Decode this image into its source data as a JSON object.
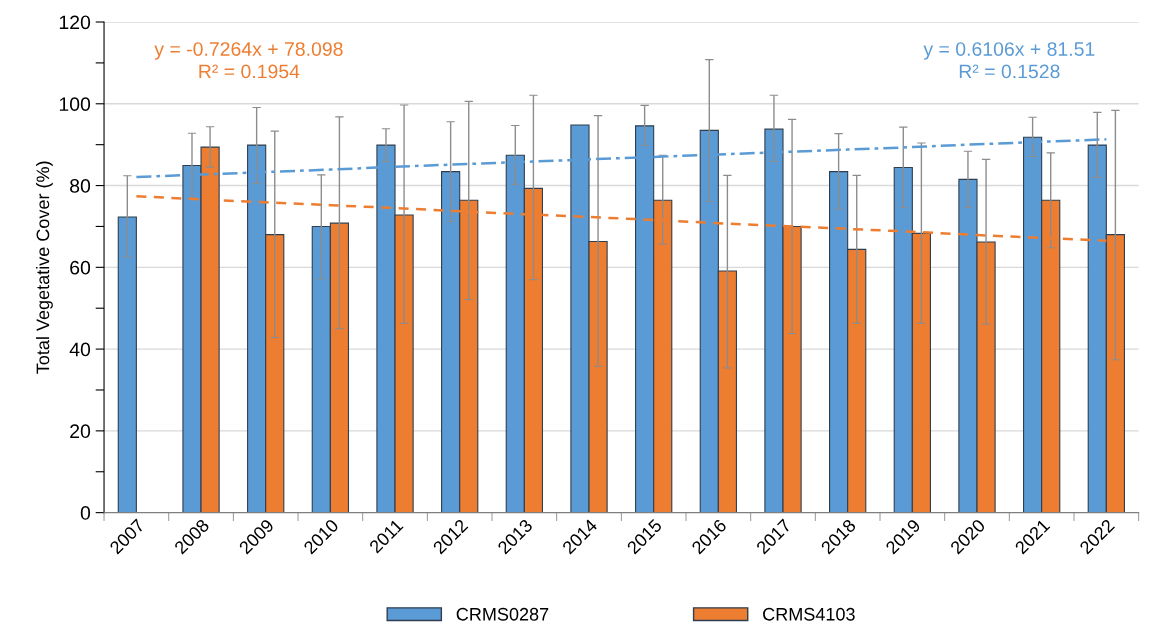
{
  "chart_data": {
    "type": "bar",
    "ylabel": "Total Vegetative Cover (%)",
    "categories": [
      "2007",
      "2008",
      "2009",
      "2010",
      "2011",
      "2012",
      "2013",
      "2014",
      "2015",
      "2016",
      "2017",
      "2018",
      "2019",
      "2020",
      "2021",
      "2022"
    ],
    "series": [
      {
        "name": "CRMS0287",
        "color": "#5b9bd5",
        "values": [
          72.3,
          84.9,
          89.9,
          70.0,
          89.9,
          83.4,
          87.4,
          94.8,
          94.6,
          93.5,
          93.8,
          83.4,
          84.4,
          81.5,
          91.8,
          89.9
        ],
        "errors": [
          [
            62.6,
            82.4
          ],
          [
            77.0,
            92.8
          ],
          [
            80.5,
            99.1
          ],
          [
            57.2,
            82.6
          ],
          [
            85.9,
            93.9
          ],
          [
            71.2,
            95.6
          ],
          [
            80.3,
            94.7
          ],
          null,
          [
            89.8,
            99.6
          ],
          [
            76.1,
            110.8
          ],
          [
            85.9,
            102.1
          ],
          [
            74.2,
            92.7
          ],
          [
            74.7,
            94.3
          ],
          [
            74.7,
            88.4
          ],
          [
            87.1,
            96.7
          ],
          [
            82.0,
            97.9
          ]
        ]
      },
      {
        "name": "CRMS4103",
        "color": "#ed7d31",
        "values": [
          null,
          89.4,
          68.0,
          70.8,
          72.8,
          76.4,
          79.3,
          66.3,
          76.4,
          59.1,
          70.0,
          64.4,
          68.3,
          66.2,
          76.4,
          68.0
        ],
        "errors": [
          null,
          [
            84.5,
            94.4
          ],
          [
            42.8,
            93.3
          ],
          [
            45.0,
            96.8
          ],
          [
            46.3,
            99.7
          ],
          [
            52.1,
            100.6
          ],
          [
            57.0,
            102.1
          ],
          [
            35.8,
            97.1
          ],
          [
            65.7,
            87.4
          ],
          [
            35.4,
            82.5
          ],
          [
            43.8,
            96.2
          ],
          [
            46.3,
            82.5
          ],
          [
            46.3,
            90.4
          ],
          [
            46.1,
            86.4
          ],
          [
            64.8,
            88.0
          ],
          [
            37.4,
            98.4
          ]
        ]
      },
      {
        "type": "line",
        "color": "#ed7d31",
        "line_style": "dashed",
        "values": [
          77.4,
          76.6,
          75.9,
          75.2,
          74.5,
          73.7,
          73.0,
          72.3,
          71.6,
          70.8,
          70.1,
          69.4,
          68.7,
          67.9,
          67.2,
          66.5
        ]
      },
      {
        "type": "line",
        "color": "#5b9bd5",
        "line_style": "dashdot",
        "values": [
          82.1,
          82.7,
          83.3,
          83.9,
          84.6,
          85.2,
          85.8,
          86.4,
          87.0,
          87.6,
          88.2,
          88.8,
          89.4,
          90.1,
          90.7,
          91.3
        ]
      }
    ],
    "annotations": [
      "y = -0.7264x + 78.098\nR² = 0.1954",
      "y = 0.6106x + 81.51\nR² = 0.1528"
    ],
    "ylim": [
      0,
      120
    ],
    "yticks": [
      0,
      {
        "value": 10,
        "label": null
      },
      20,
      {
        "value": 30,
        "label": null
      },
      40,
      {
        "value": 50,
        "label": null
      },
      60,
      {
        "value": 70,
        "label": null
      },
      80,
      {
        "value": 90,
        "label": null
      },
      100,
      {
        "value": 110,
        "label": null
      },
      120
    ],
    "grid": "y",
    "legend": "bottom"
  }
}
